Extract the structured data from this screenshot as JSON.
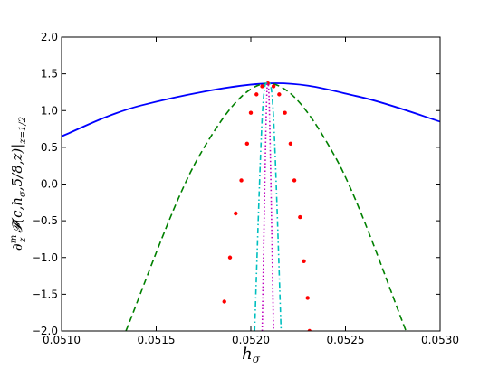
{
  "chart_data": {
    "type": "line",
    "xlabel": "h_σ",
    "ylabel": "∂_z^m 𝓕(c,h_σ,5/8,z)|_{z=1/2}",
    "xlim": [
      0.051,
      0.053
    ],
    "ylim": [
      -2.0,
      2.0
    ],
    "x_ticks": [
      0.051,
      0.0515,
      0.052,
      0.0525,
      0.053
    ],
    "x_tick_labels": [
      "0.0510",
      "0.0515",
      "0.0520",
      "0.0525",
      "0.0530"
    ],
    "y_ticks": [
      -2.0,
      -1.5,
      -1.0,
      -0.5,
      0.0,
      0.5,
      1.0,
      1.5,
      2.0
    ],
    "y_tick_labels": [
      "−2.0",
      "−1.5",
      "−1.0",
      "−0.5",
      "0.0",
      "0.5",
      "1.0",
      "1.5",
      "2.0"
    ],
    "grid": false,
    "legend": "none",
    "peak": {
      "x": 0.05209,
      "y": 1.37
    },
    "series": [
      {
        "style": "solid",
        "color": "#0000ff",
        "x": [
          0.051,
          0.05142,
          0.05209,
          0.05257,
          0.053
        ],
        "y": [
          0.65,
          1.07,
          1.37,
          1.19,
          0.85
        ]
      },
      {
        "style": "dashed",
        "color": "#008000",
        "x": [
          0.05134,
          0.05172,
          0.05209,
          0.05245,
          0.05282
        ],
        "y": [
          -2.0,
          0.35,
          1.37,
          0.35,
          -2.0
        ]
      },
      {
        "style": "markers",
        "color": "#ff0000",
        "x": [
          0.05186,
          0.05189,
          0.05192,
          0.05195,
          0.05198,
          0.052,
          0.05203,
          0.05206,
          0.05209,
          0.05212,
          0.05215,
          0.05218,
          0.05221,
          0.05223,
          0.05226,
          0.05228,
          0.0523,
          0.05231
        ],
        "y": [
          -1.6,
          -1.0,
          -0.4,
          0.05,
          0.55,
          0.97,
          1.22,
          1.33,
          1.37,
          1.33,
          1.22,
          0.97,
          0.55,
          0.05,
          -0.45,
          -1.05,
          -1.55,
          -2.0
        ]
      },
      {
        "style": "dashdot",
        "color": "#00bfbf",
        "x": [
          0.05202,
          0.05206,
          0.05209,
          0.05212,
          0.05216
        ],
        "y": [
          -2.0,
          0.9,
          1.37,
          0.9,
          -2.0
        ]
      },
      {
        "style": "dotted",
        "color": "#bf00bf",
        "x": [
          0.05206,
          0.05208,
          0.05209,
          0.0521,
          0.05212
        ],
        "y": [
          -2.0,
          0.8,
          1.37,
          0.8,
          -2.0
        ]
      }
    ]
  }
}
